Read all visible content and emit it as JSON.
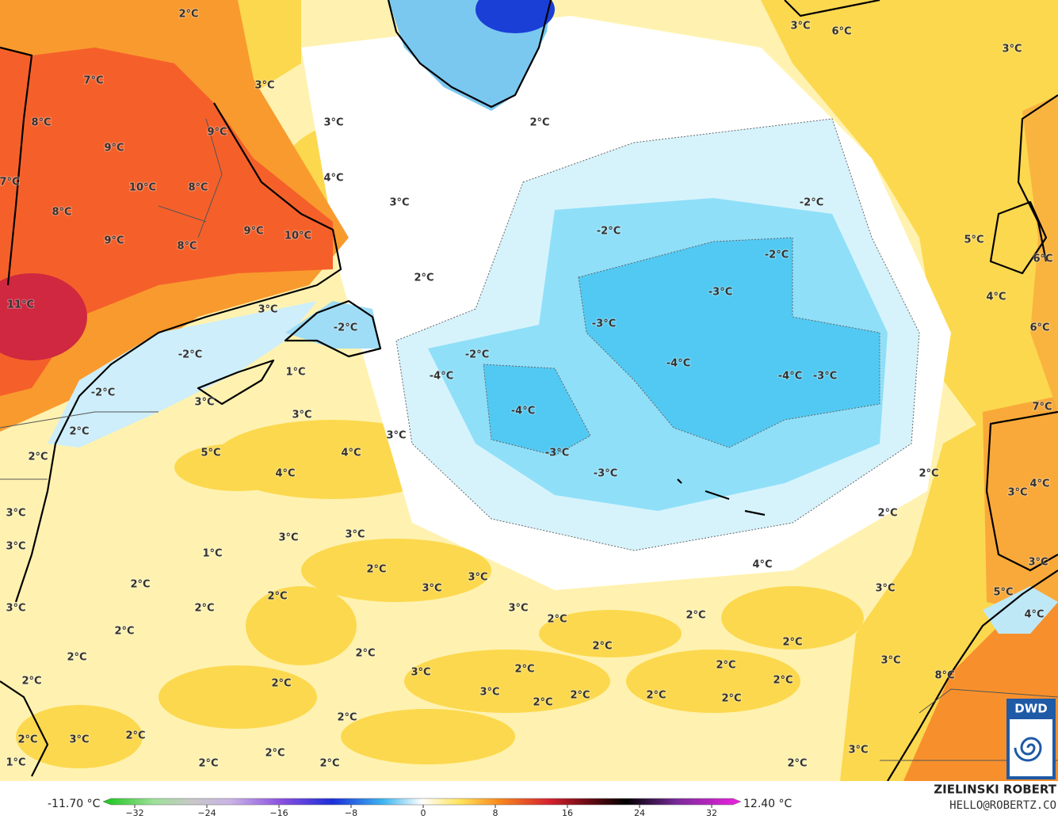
{
  "map": {
    "contour_labels": [
      "2°C",
      "3°C",
      "6°C",
      "3°C",
      "7°C",
      "3°C",
      "8°C",
      "9°C",
      "3°C",
      "2°C",
      "9°C",
      "4°C",
      "10°C",
      "8°C",
      "7°C",
      "3°C",
      "-2°C",
      "8°C",
      "9°C",
      "10°C",
      "-2°C",
      "9°C",
      "8°C",
      "5°C",
      "-2°C",
      "6°C",
      "2°C",
      "-3°C",
      "4°C",
      "11°C",
      "3°C",
      "-3°C",
      "-2°C",
      "6°C",
      "-2°C",
      "-2°C",
      "-4°C",
      "-4°C",
      "-3°C",
      "1°C",
      "-4°C",
      "-2°C",
      "3°C",
      "7°C",
      "-4°C",
      "3°C",
      "2°C",
      "3°C",
      "-3°C",
      "5°C",
      "4°C",
      "2°C",
      "-3°C",
      "4°C",
      "2°C",
      "4°C",
      "3°C",
      "2°C",
      "3°C",
      "3°C",
      "3°C",
      "3°C",
      "2°C",
      "1°C",
      "4°C",
      "3°C",
      "3°C",
      "3°C",
      "2°C",
      "3°C",
      "5°C",
      "2°C",
      "2°C",
      "4°C",
      "3°C",
      "3°C",
      "2°C",
      "2°C",
      "2°C",
      "2°C",
      "2°C",
      "2°C",
      "2°C",
      "3°C",
      "2°C",
      "2°C",
      "3°C",
      "8°C",
      "2°C",
      "2°C",
      "2°C",
      "3°C",
      "2°C",
      "2°C",
      "2°C",
      "2°C",
      "2°C",
      "2°C",
      "2°C",
      "3°C",
      "3°C",
      "2°C",
      "2°C",
      "2°C",
      "2°C",
      "1°C"
    ],
    "colorbar": {
      "min_label": "-11.70 °C",
      "max_label": "12.40 °C",
      "ticks": [
        {
          "value": -32,
          "label": "−32"
        },
        {
          "value": -24,
          "label": "−24"
        },
        {
          "value": -16,
          "label": "−16"
        },
        {
          "value": -8,
          "label": "−8"
        },
        0,
        8,
        16,
        24,
        32
      ]
    },
    "credit": {
      "author": "ZIELINSKI ROBERT",
      "email": "HELLO@ROBERTZ.CO",
      "logo": "DWD"
    }
  }
}
